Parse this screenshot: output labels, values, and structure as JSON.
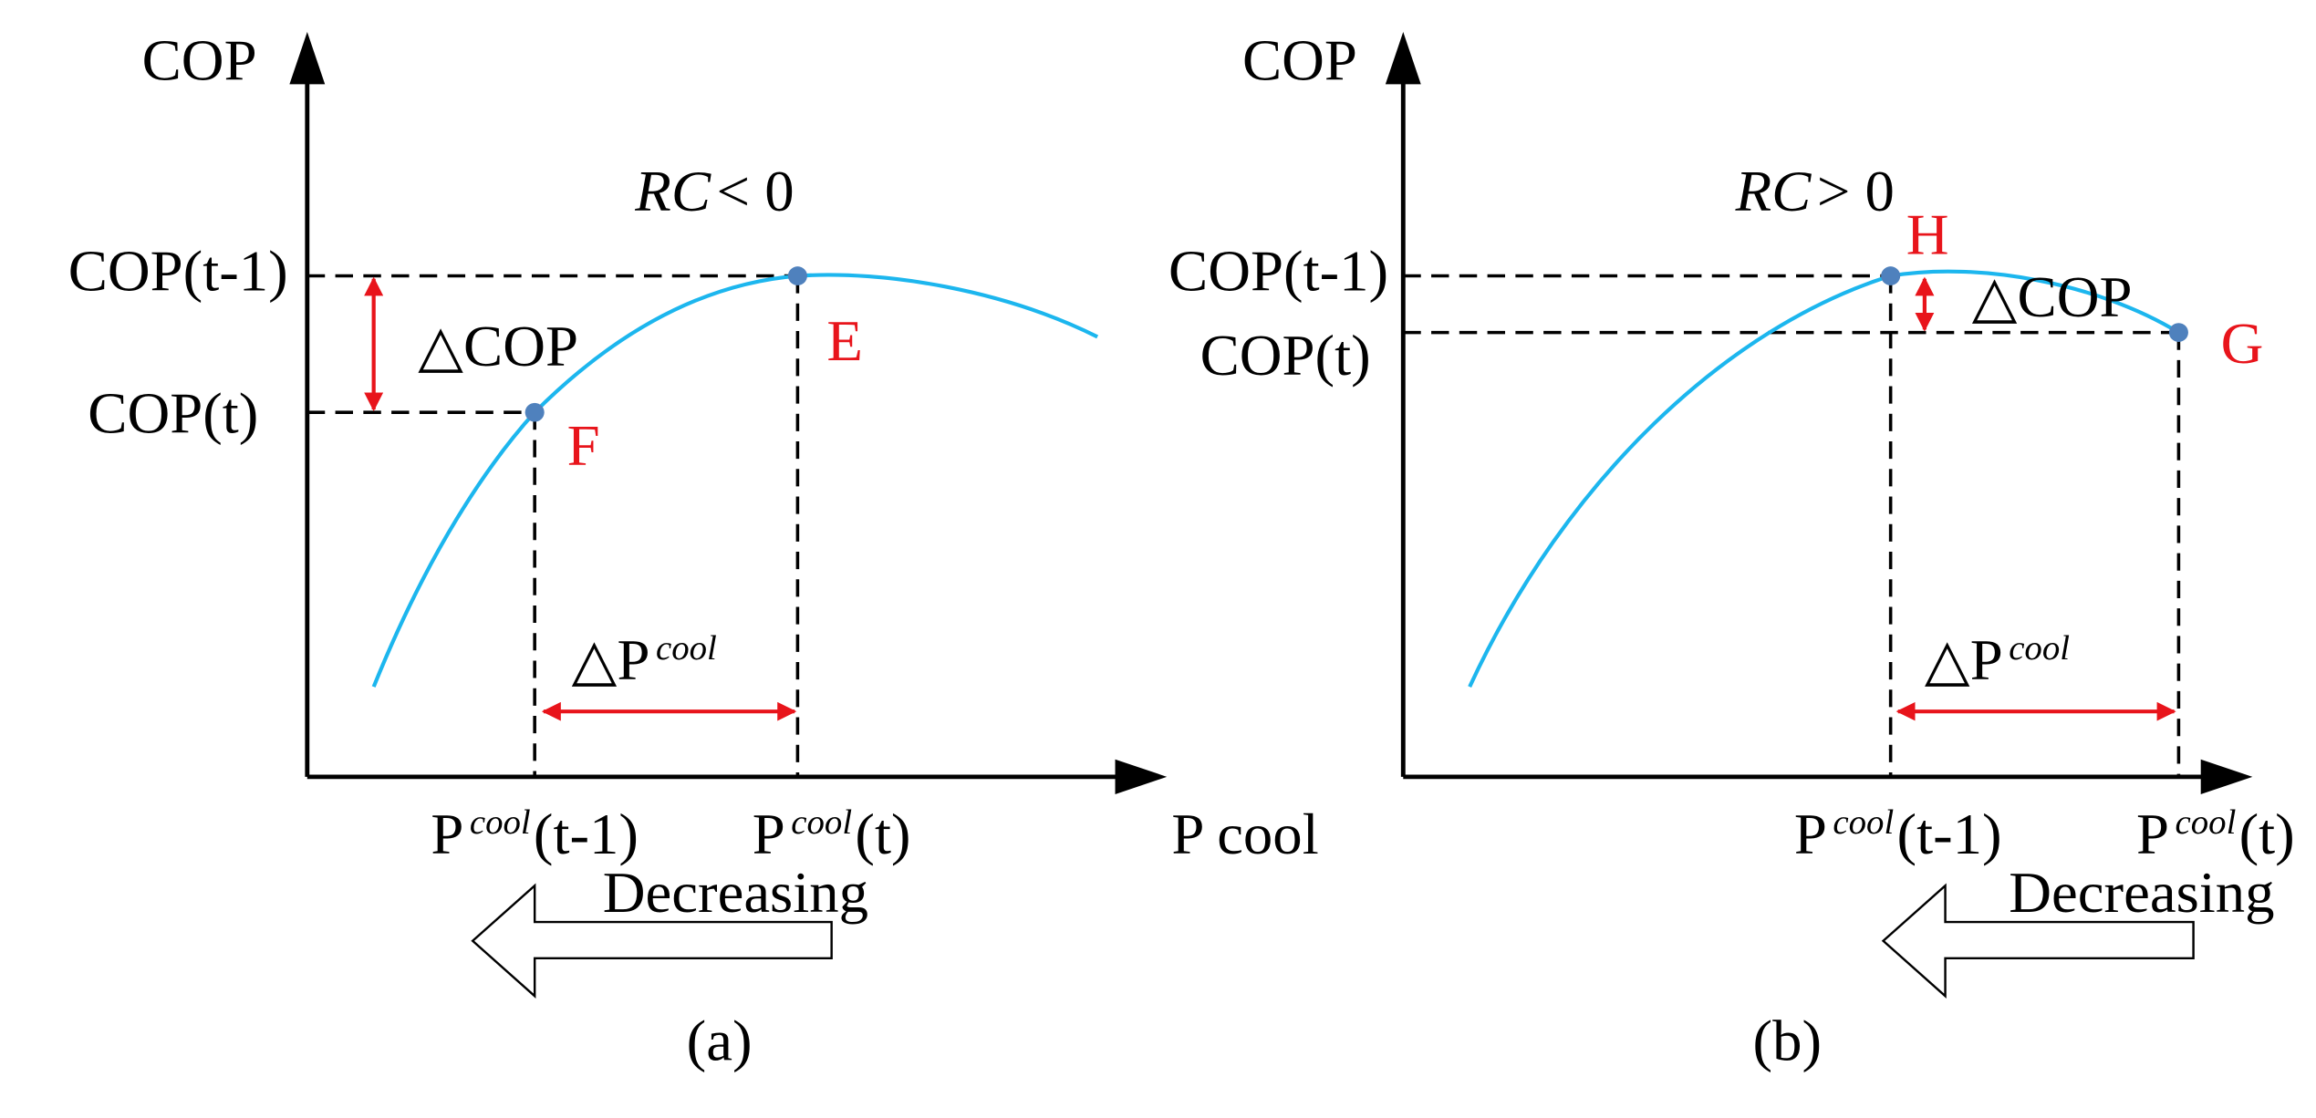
{
  "panels": [
    {
      "caption": "(a)",
      "y_axis_label": "COP",
      "x_axis_label": "P cool",
      "condition": {
        "variable": "RC",
        "relation": "< 0"
      },
      "cop_prev_label": "COP(t-1)",
      "cop_curr_label": "COP(t)",
      "delta_cop_label": "△COP",
      "delta_p": {
        "base": "△P",
        "sup": "cool"
      },
      "p_prev": {
        "base": "P",
        "sup": "cool",
        "suffix": "(t-1)"
      },
      "p_curr": {
        "base": "P",
        "sup": "cool",
        "suffix": "(t)"
      },
      "point_high": "E",
      "point_low": "F",
      "arrow_label": "Decreasing"
    },
    {
      "caption": "(b)",
      "y_axis_label": "COP",
      "condition": {
        "variable": "RC",
        "relation": "> 0"
      },
      "cop_prev_label": "COP(t-1)",
      "cop_curr_label": "COP(t)",
      "delta_cop_label": "△COP",
      "delta_p": {
        "base": "△P",
        "sup": "cool"
      },
      "p_prev": {
        "base": "P",
        "sup": "cool",
        "suffix": "(t-1)"
      },
      "p_curr": {
        "base": "P",
        "sup": "cool",
        "suffix": "(t)"
      },
      "point_high": "H",
      "point_low": "G",
      "arrow_label": "Decreasing"
    }
  ]
}
